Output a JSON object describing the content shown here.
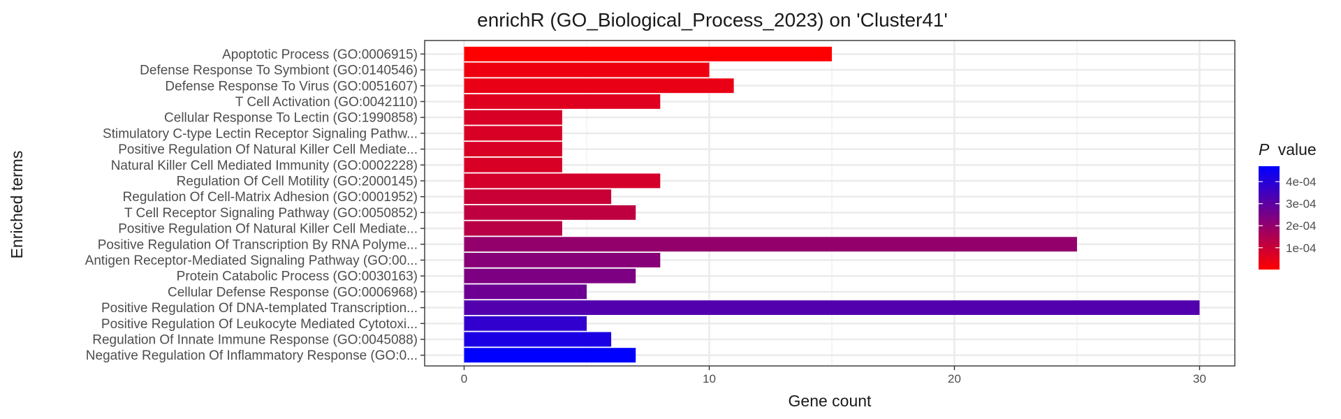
{
  "chart_data": {
    "type": "bar",
    "orientation": "horizontal",
    "title": "enrichR (GO_Biological_Process_2023) on 'Cluster41'",
    "xlabel": "Gene count",
    "ylabel": "Enriched terms",
    "xlim": [
      0,
      31.5
    ],
    "xticks": [
      0,
      10,
      20,
      30
    ],
    "grid": true,
    "legend": {
      "title_symbol": "P",
      "title_rest": "value",
      "position": "right",
      "type": "colorbar",
      "ticks": [
        {
          "value": 0.0001,
          "label": "1e-04"
        },
        {
          "value": 0.0002,
          "label": "2e-04"
        },
        {
          "value": 0.0003,
          "label": "3e-04"
        },
        {
          "value": 0.0004,
          "label": "4e-04"
        }
      ],
      "range": [
        1e-06,
        0.00047
      ],
      "low_color": "#ff0000",
      "high_color": "#0000ff"
    },
    "categories": [
      "Apoptotic Process (GO:0006915)",
      "Defense Response To Symbiont (GO:0140546)",
      "Defense Response To Virus (GO:0051607)",
      "T Cell Activation (GO:0042110)",
      "Cellular Response To Lectin (GO:1990858)",
      "Stimulatory C-type Lectin Receptor Signaling Pathw...",
      "Positive Regulation Of Natural Killer Cell Mediate...",
      "Natural Killer Cell Mediated Immunity (GO:0002228)",
      "Regulation Of Cell Motility (GO:2000145)",
      "Regulation Of Cell-Matrix Adhesion (GO:0001952)",
      "T Cell Receptor Signaling Pathway (GO:0050852)",
      "Positive Regulation Of Natural Killer Cell Mediate...",
      "Positive Regulation Of Transcription By RNA Polyme...",
      "Antigen Receptor-Mediated Signaling Pathway (GO:00...",
      "Protein Catabolic Process (GO:0030163)",
      "Cellular Defense Response (GO:0006968)",
      "Positive Regulation Of DNA-templated Transcription...",
      "Positive Regulation Of Leukocyte Mediated Cytotoxi...",
      "Regulation Of Innate Immune Response (GO:0045088)",
      "Negative Regulation Of Inflammatory Response (GO:0..."
    ],
    "values": [
      15,
      10,
      11,
      8,
      4,
      4,
      4,
      4,
      8,
      6,
      7,
      4,
      25,
      8,
      7,
      5,
      30,
      5,
      6,
      7
    ],
    "p_values": [
      2e-06,
      3e-05,
      4e-05,
      6e-05,
      7e-05,
      7e-05,
      7e-05,
      7e-05,
      8e-05,
      0.0001,
      0.00012,
      0.00013,
      0.0002,
      0.00022,
      0.00024,
      0.00027,
      0.00032,
      0.00038,
      0.00042,
      0.00047
    ]
  }
}
